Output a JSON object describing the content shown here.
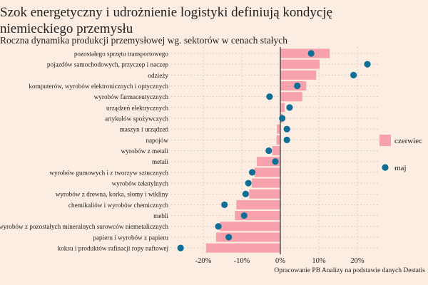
{
  "chart_data": {
    "type": "bar",
    "orientation": "horizontal",
    "title": "Szok energetyczny i udrożnienie logistyki definiują kondycję niemieckiego przemysłu",
    "subtitle": "Roczna dynamika produkcji przemysłowej wg. sektorów w cenach stałych",
    "caption": "Opracowanie PB Analizy na podstawie danych Destatis",
    "xlim": [
      -27,
      25
    ],
    "x_ticks": [
      -20,
      -10,
      0,
      10,
      20
    ],
    "x_tick_labels": [
      "-20%",
      "-10%",
      "0%",
      "10%",
      "20%"
    ],
    "grid": true,
    "legend_position": "right",
    "categories": [
      "pozostałego sprzętu transportowego",
      "pojazdów samochodowych, przyczep i naczep",
      "odzieży",
      "komputerów, wyrobów elektronicznych i optycznych",
      "wyrobów farmaceutycznych",
      "urządzeń elektrycznych",
      "artykułów spożywczych",
      "maszyn i urządzeń",
      "napojów",
      "wyrobów z metali",
      "metali",
      "wyrobów gumowych i z tworzyw sztucznych",
      "wyrobów tekstylnych",
      "wyrobów z drewna, korka, słomy i wikliny",
      "chemikaliów i wyrobów chemicznych",
      "mebli",
      "wyrobów z pozostałych mineralnych surowców niemetalicznych",
      "papieru i wyrobów z papieru",
      "koksu i produktów rafinacji ropy naftowej"
    ],
    "series": [
      {
        "name": "czerwiec",
        "mark": "bar",
        "color": "#f7a1ac",
        "values": [
          12.8,
          10.2,
          9.3,
          6.7,
          5.7,
          1.1,
          0.6,
          -0.9,
          -1.0,
          -2.1,
          -6.1,
          -6.7,
          -7.4,
          -8.1,
          -11.4,
          -11.8,
          -15.7,
          -16.7,
          -19.3
        ]
      },
      {
        "name": "maj",
        "mark": "point",
        "color": "#0f6e95",
        "values": [
          8.0,
          22.6,
          19.0,
          4.4,
          -2.8,
          2.4,
          0.5,
          1.7,
          1.7,
          -3.0,
          -1.3,
          -7.3,
          -8.3,
          -9.0,
          -14.5,
          -9.4,
          -16.1,
          -13.4,
          -25.9
        ]
      }
    ]
  }
}
